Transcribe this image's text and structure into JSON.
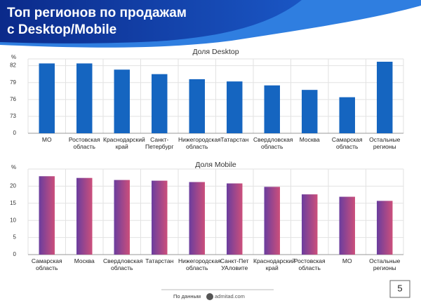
{
  "header": {
    "title": "Топ регионов по продажам\nс Desktop/Mobile"
  },
  "chart_data": [
    {
      "type": "bar",
      "title": "Доля Desktop",
      "y_label": "%",
      "categories": [
        "МО",
        "Ростовская\nобласть",
        "Краснодарский\nкрай",
        "Санкт-\nПетербург",
        "Нижегородская\nобласть",
        "Татарстан",
        "Свердловская\nобласть",
        "Москва",
        "Самарская\nобласть",
        "Остальные\nрегионы"
      ],
      "values": [
        82.4,
        82.4,
        81.3,
        80.5,
        79.6,
        79.2,
        78.5,
        77.7,
        76.4,
        82.7
      ],
      "color": "#1565c0",
      "ylim": [
        0,
        83.2
      ],
      "yticks": [
        0,
        73,
        76,
        79,
        82
      ],
      "grid": true
    },
    {
      "type": "bar",
      "title": "Доля Mobile",
      "y_label": "%",
      "categories": [
        "Самарская\nобласть",
        "Москва",
        "Свердловская\nобласть",
        "Татарстан",
        "Нижегородская\nобласть",
        "Санкт-Пет\nУАловите",
        "Краснодарский\nкрай",
        "Ростовская\nобласть",
        "МО",
        "Остальные\nрегионы"
      ],
      "values": [
        22.9,
        22.4,
        21.8,
        21.6,
        21.2,
        20.8,
        19.8,
        17.6,
        16.9,
        15.7
      ],
      "gradient": [
        "#6a3d9e",
        "#cc4f7b"
      ],
      "ylim": [
        0,
        25
      ],
      "yticks": [
        0,
        5,
        10,
        15,
        20
      ],
      "grid": true
    }
  ],
  "footer": {
    "source": "По данным",
    "brand": "admitad.com",
    "page": "5"
  }
}
